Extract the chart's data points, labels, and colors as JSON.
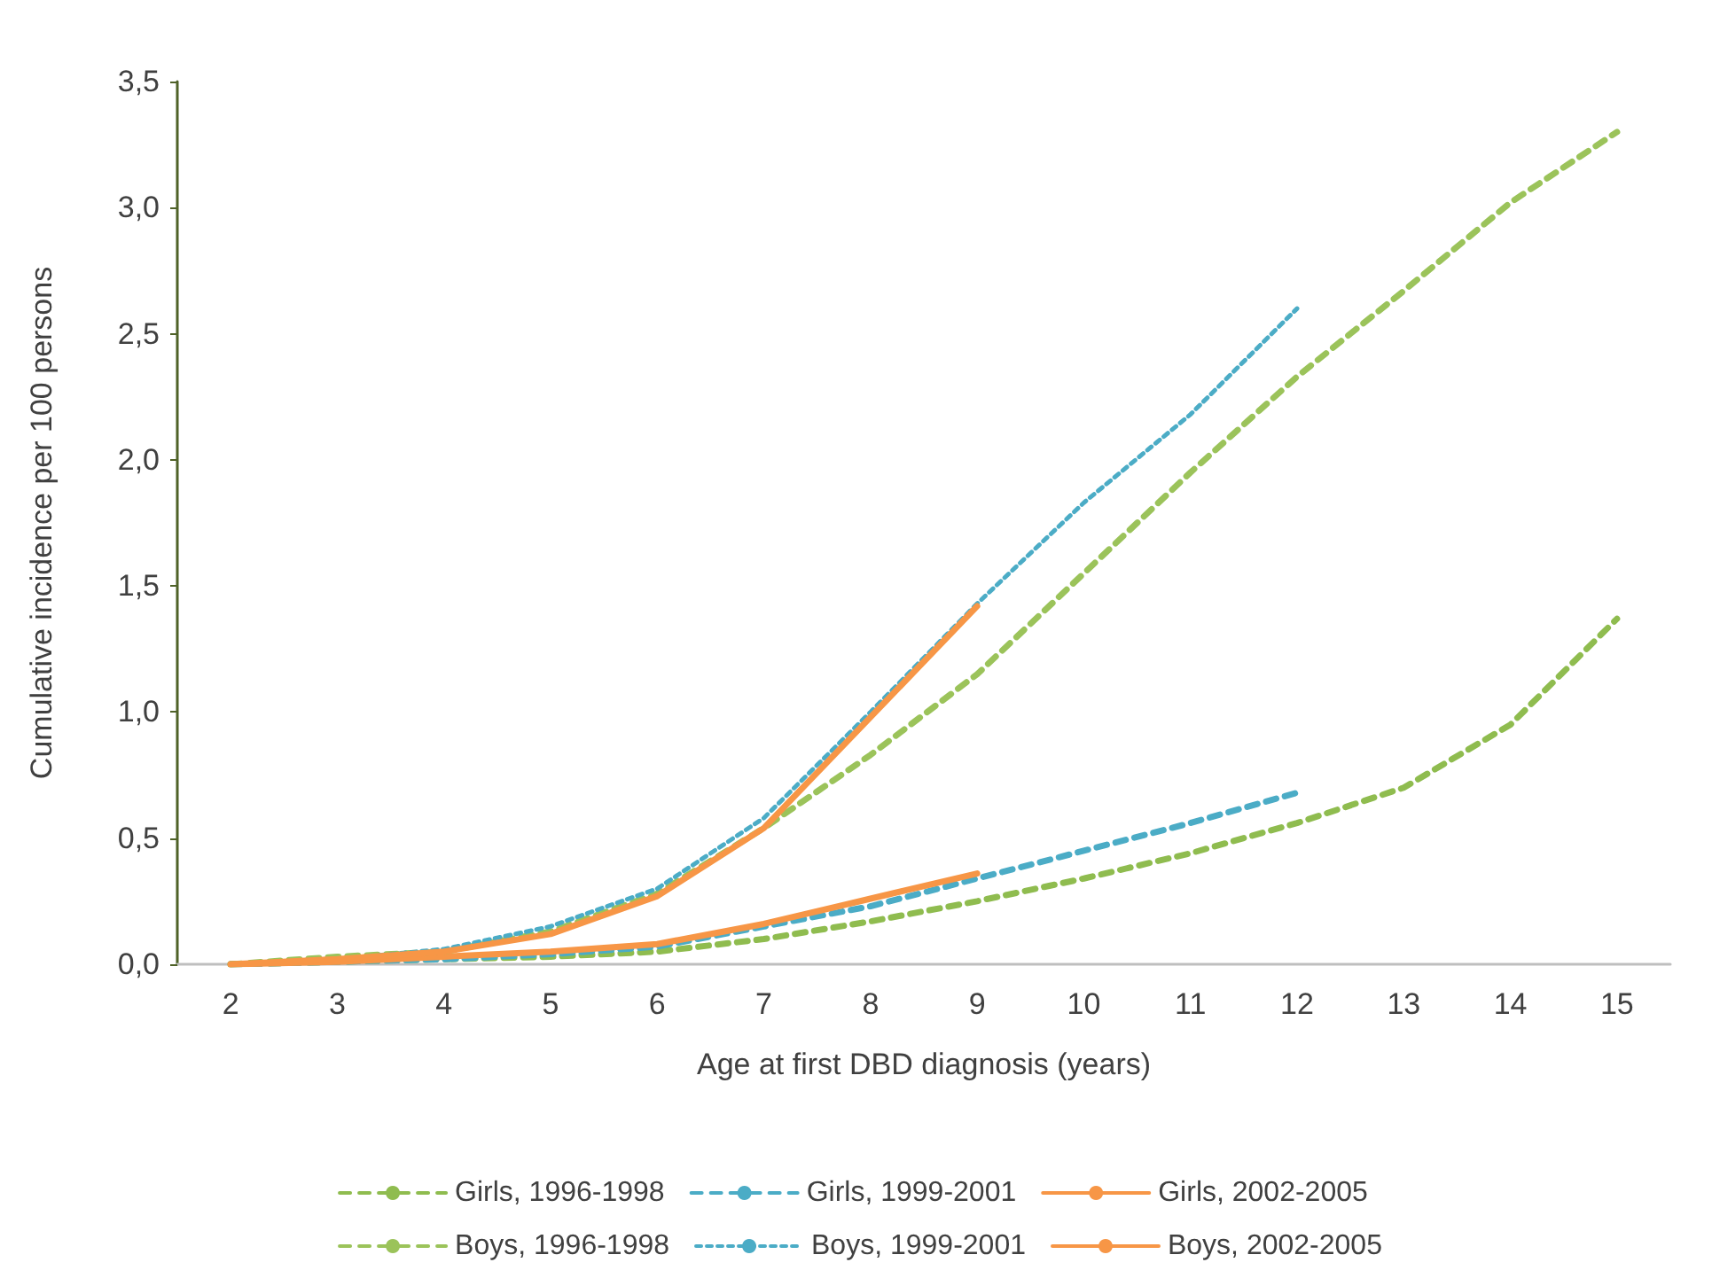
{
  "chart_data": {
    "type": "line",
    "xlabel": "Age at first DBD diagnosis (years)",
    "ylabel": "Cumulative incidence per 100 persons",
    "categories": [
      "2",
      "3",
      "4",
      "5",
      "6",
      "7",
      "8",
      "9",
      "10",
      "11",
      "12",
      "13",
      "14",
      "15"
    ],
    "ylim": [
      0,
      3.5
    ],
    "yticks": [
      {
        "value": 0,
        "label": "0,0"
      },
      {
        "value": 0.5,
        "label": "0,5"
      },
      {
        "value": 1,
        "label": "1,0"
      },
      {
        "value": 1.5,
        "label": "1,5"
      },
      {
        "value": 2,
        "label": "2,0"
      },
      {
        "value": 2.5,
        "label": "2,5"
      },
      {
        "value": 3,
        "label": "3,0"
      },
      {
        "value": 3.5,
        "label": "3,5"
      }
    ],
    "grid": false,
    "legend": "bottom",
    "marker": "none",
    "series": [
      {
        "name": "Girls, 1996-1998",
        "color": "#8fbc4f",
        "line_style": "dashed",
        "values": [
          0,
          0.01,
          0.02,
          0.03,
          0.05,
          0.1,
          0.17,
          0.25,
          0.34,
          0.44,
          0.56,
          0.7,
          0.95,
          1.37
        ]
      },
      {
        "name": "Girls, 1999-2001",
        "color": "#4bacc6",
        "line_style": "dashed",
        "values": [
          0,
          0.01,
          0.02,
          0.04,
          0.07,
          0.15,
          0.23,
          0.34,
          0.45,
          0.56,
          0.68,
          null,
          null,
          null
        ]
      },
      {
        "name": "Girls, 2002-2005",
        "color": "#f79646",
        "line_style": "solid",
        "values": [
          0,
          0.01,
          0.03,
          0.05,
          0.08,
          0.16,
          0.26,
          0.36,
          null,
          null,
          null,
          null,
          null,
          null
        ]
      },
      {
        "name": "Boys, 1996-1998",
        "color": "#9bc35a",
        "line_style": "dashed",
        "values": [
          0,
          0.03,
          0.05,
          0.13,
          0.28,
          0.54,
          0.83,
          1.15,
          1.55,
          1.95,
          2.33,
          2.67,
          3.02,
          3.3
        ]
      },
      {
        "name": "Boys, 1999-2001",
        "color": "#4bacc6",
        "line_style": "dotted",
        "values": [
          0,
          0.02,
          0.06,
          0.15,
          0.3,
          0.58,
          1.0,
          1.43,
          1.83,
          2.18,
          2.6,
          null,
          null,
          null
        ]
      },
      {
        "name": "Boys, 2002-2005",
        "color": "#f79646",
        "line_style": "solid",
        "values": [
          0,
          0.02,
          0.05,
          0.12,
          0.27,
          0.54,
          0.98,
          1.42,
          null,
          null,
          null,
          null,
          null,
          null
        ]
      }
    ]
  }
}
